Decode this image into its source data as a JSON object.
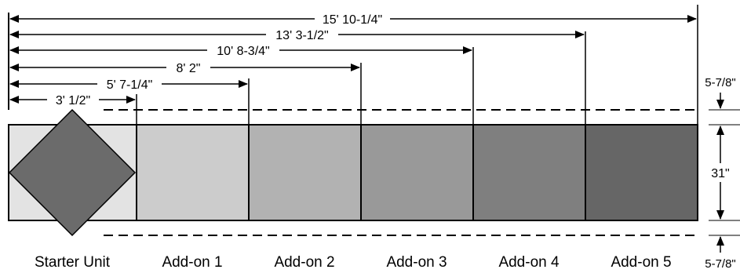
{
  "dimensions": [
    {
      "label": "15' 10-1/4\""
    },
    {
      "label": "13' 3-1/2\""
    },
    {
      "label": "10' 8-3/4\""
    },
    {
      "label": "8' 2\""
    },
    {
      "label": "5' 7-1/4\""
    },
    {
      "label": "3' 1/2\""
    }
  ],
  "side_dimensions": {
    "top_clearance": "5-7/8\"",
    "height": "31\"",
    "bottom_clearance": "5-7/8\""
  },
  "units": [
    {
      "name": "Starter Unit",
      "color": "#e3e3e3"
    },
    {
      "name": "Add-on 1",
      "color": "#cccccc"
    },
    {
      "name": "Add-on 2",
      "color": "#b2b2b2"
    },
    {
      "name": "Add-on 3",
      "color": "#999999"
    },
    {
      "name": "Add-on 4",
      "color": "#7f7f7f"
    },
    {
      "name": "Add-on 5",
      "color": "#666666"
    }
  ],
  "starter_symbol_color": "#6b6b6b",
  "line_color": "#000000"
}
